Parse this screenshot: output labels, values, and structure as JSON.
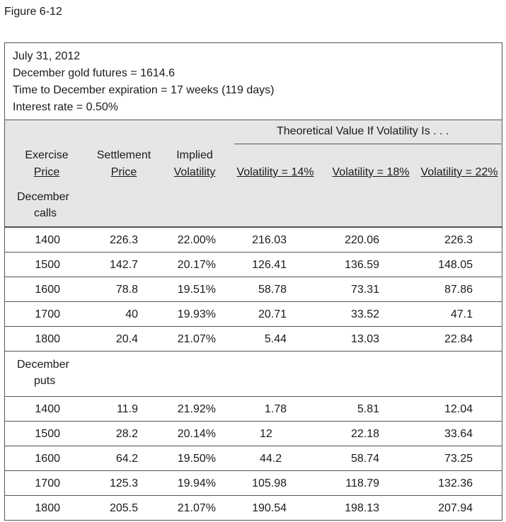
{
  "figure_label": "Figure 6-12",
  "info": {
    "date": "July 31, 2012",
    "futures": "December gold futures = 1614.6",
    "expiration": "Time to December expiration = 17 weeks (119 days)",
    "rate": "Interest rate = 0.50%"
  },
  "header": {
    "theoretical": "Theoretical Value If Volatility Is . . .",
    "exercise": [
      "Exercise",
      "Price"
    ],
    "settlement": [
      "Settlement",
      "Price"
    ],
    "implied": [
      "Implied",
      "Volatility"
    ],
    "vol14": "Volatility = 14%",
    "vol18": "Volatility = 18%",
    "vol22": "Volatility = 22%"
  },
  "calls": {
    "label": [
      "December",
      "calls"
    ],
    "rows": [
      [
        "1400",
        "226.3",
        "22.00%",
        "216.03",
        "220.06",
        "226.3"
      ],
      [
        "1500",
        "142.7",
        "20.17%",
        "126.41",
        "136.59",
        "148.05"
      ],
      [
        "1600",
        "78.8",
        "19.51%",
        "58.78",
        "73.31",
        "87.86"
      ],
      [
        "1700",
        "40",
        "19.93%",
        "20.71",
        "33.52",
        "47.1"
      ],
      [
        "1800",
        "20.4",
        "21.07%",
        "5.44",
        "13.03",
        "22.84"
      ]
    ]
  },
  "puts": {
    "label": [
      "December",
      "puts"
    ],
    "rows": [
      [
        "1400",
        "11.9",
        "21.92%",
        "1.78",
        "5.81",
        "12.04"
      ],
      [
        "1500",
        "28.2",
        "20.14%",
        "12",
        "22.18",
        "33.64"
      ],
      [
        "1600",
        "64.2",
        "19.50%",
        "44.2",
        "58.74",
        "73.25"
      ],
      [
        "1700",
        "125.3",
        "19.94%",
        "105.98",
        "118.79",
        "132.36"
      ],
      [
        "1800",
        "205.5",
        "21.07%",
        "190.54",
        "198.13",
        "207.94"
      ]
    ]
  }
}
